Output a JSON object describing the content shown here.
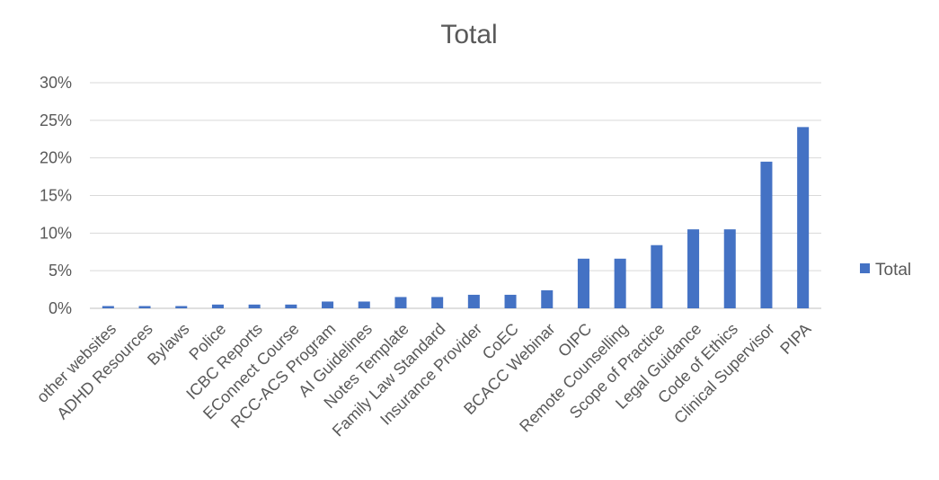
{
  "chart_data": {
    "type": "bar",
    "title": "Total",
    "xlabel": "",
    "ylabel": "",
    "categories": [
      "other websites",
      "ADHD Resources",
      "Bylaws",
      "Police",
      "ICBC Reports",
      "EConnect Course",
      "RCC-ACS Program",
      "AI Guidelines",
      "Notes Template",
      "Family Law Standard",
      "Insurance Provider",
      "CoEC",
      "BCACC Webinar",
      "OIPC",
      "Remote Counselling",
      "Scope of Practice",
      "Legal Guidance",
      "Code of Ethics",
      "Clinical Supervisor",
      "PIPA"
    ],
    "series": [
      {
        "name": "Total",
        "color": "#4472c4",
        "values": [
          0.3,
          0.3,
          0.3,
          0.5,
          0.5,
          0.5,
          0.9,
          0.9,
          1.5,
          1.5,
          1.8,
          1.8,
          2.4,
          6.6,
          6.6,
          8.4,
          10.5,
          10.5,
          19.5,
          24.1
        ]
      }
    ],
    "ylim": [
      0,
      30
    ],
    "yticks": [
      0,
      5,
      10,
      15,
      20,
      25,
      30
    ],
    "ytick_labels": [
      "0%",
      "5%",
      "10%",
      "15%",
      "20%",
      "25%",
      "30%"
    ],
    "grid": true,
    "legend_position": "right"
  }
}
